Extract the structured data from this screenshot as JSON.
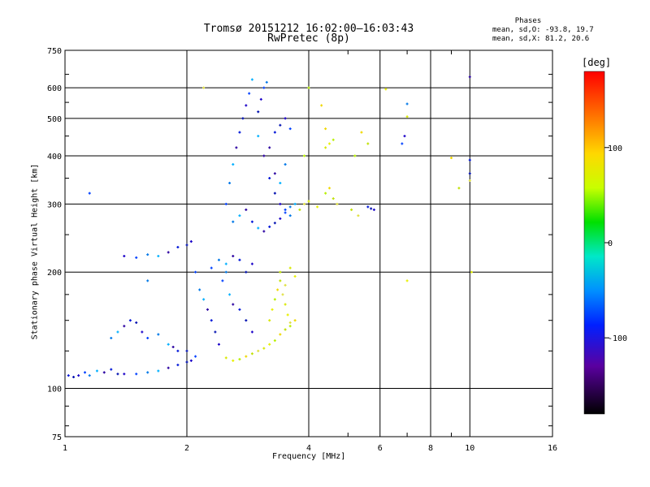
{
  "chart_data": {
    "type": "scatter",
    "title": "Tromsø 20151212 16:02:00–16:03:43",
    "subtitle": "RwPretec (8p)",
    "xlabel": "Frequency [MHz]",
    "ylabel": "Stationary phase Virtual Height [km]",
    "xscale": "log",
    "yscale": "log",
    "xlim": [
      1,
      16
    ],
    "ylim": [
      75,
      750
    ],
    "xticks": [
      1,
      2,
      4,
      6,
      8,
      10,
      16
    ],
    "yticks": [
      75,
      100,
      200,
      300,
      400,
      500,
      600,
      750
    ],
    "grid": true,
    "phases": {
      "title": "Phases",
      "o_line": "mean, sd,O: -93.8, 19.7",
      "x_line": "mean, sd,X:  81.2, 20.6"
    },
    "colorbar": {
      "unit": "[deg]",
      "ticks": [
        100,
        0,
        -100
      ],
      "range": [
        -180,
        180
      ]
    },
    "series": [
      {
        "values": [
          [
            1.02,
            108
          ],
          [
            1.05,
            107
          ],
          [
            1.08,
            108
          ],
          [
            1.12,
            110
          ],
          [
            1.15,
            108
          ],
          [
            1.2,
            111
          ],
          [
            1.25,
            110
          ],
          [
            1.3,
            112
          ],
          [
            1.35,
            109
          ],
          [
            1.4,
            109
          ],
          [
            1.5,
            109
          ],
          [
            1.6,
            110
          ],
          [
            1.7,
            111
          ],
          [
            1.8,
            113
          ],
          [
            1.9,
            115
          ],
          [
            2.0,
            117
          ],
          [
            2.05,
            118
          ],
          [
            2.1,
            121
          ],
          [
            1.3,
            135
          ],
          [
            1.35,
            140
          ],
          [
            1.4,
            145
          ],
          [
            1.45,
            150
          ],
          [
            1.5,
            148
          ],
          [
            1.55,
            140
          ],
          [
            1.6,
            135
          ],
          [
            1.7,
            138
          ],
          [
            1.8,
            130
          ],
          [
            1.85,
            128
          ],
          [
            1.9,
            125
          ],
          [
            2.0,
            125
          ],
          [
            1.4,
            220
          ],
          [
            1.5,
            218
          ],
          [
            1.6,
            222
          ],
          [
            1.7,
            220
          ],
          [
            1.8,
            225
          ],
          [
            1.9,
            232
          ],
          [
            2.0,
            235
          ],
          [
            2.05,
            240
          ],
          [
            2.1,
            200
          ],
          [
            2.15,
            180
          ],
          [
            2.2,
            170
          ],
          [
            2.25,
            160
          ],
          [
            2.3,
            150
          ],
          [
            2.35,
            140
          ],
          [
            2.4,
            130
          ],
          [
            2.45,
            190
          ],
          [
            2.5,
            200
          ],
          [
            2.55,
            175
          ],
          [
            2.6,
            165
          ],
          [
            2.7,
            160
          ],
          [
            2.8,
            150
          ],
          [
            2.9,
            140
          ],
          [
            2.3,
            205
          ],
          [
            2.4,
            215
          ],
          [
            2.5,
            210
          ],
          [
            2.6,
            220
          ],
          [
            2.7,
            215
          ],
          [
            2.8,
            200
          ],
          [
            2.9,
            210
          ],
          [
            2.5,
            300
          ],
          [
            2.55,
            340
          ],
          [
            2.6,
            380
          ],
          [
            2.65,
            420
          ],
          [
            2.7,
            460
          ],
          [
            2.75,
            500
          ],
          [
            2.8,
            540
          ],
          [
            2.85,
            580
          ],
          [
            2.6,
            270
          ],
          [
            2.7,
            280
          ],
          [
            2.8,
            290
          ],
          [
            2.9,
            270
          ],
          [
            3.0,
            520
          ],
          [
            3.05,
            560
          ],
          [
            3.1,
            600
          ],
          [
            3.15,
            620
          ],
          [
            3.0,
            450
          ],
          [
            3.1,
            400
          ],
          [
            3.2,
            350
          ],
          [
            3.3,
            320
          ],
          [
            3.4,
            300
          ],
          [
            3.5,
            290
          ],
          [
            3.6,
            280
          ],
          [
            3.0,
            260
          ],
          [
            3.1,
            255
          ],
          [
            3.2,
            262
          ],
          [
            3.3,
            268
          ],
          [
            3.4,
            275
          ],
          [
            3.5,
            285
          ],
          [
            3.6,
            295
          ],
          [
            3.7,
            300
          ],
          [
            3.2,
            420
          ],
          [
            3.3,
            460
          ],
          [
            3.4,
            480
          ],
          [
            3.5,
            500
          ],
          [
            3.6,
            470
          ],
          [
            3.5,
            380
          ],
          [
            3.4,
            340
          ],
          [
            3.3,
            360
          ],
          [
            5.6,
            295
          ],
          [
            5.7,
            292
          ],
          [
            5.8,
            290
          ],
          [
            1.15,
            320
          ],
          [
            1.6,
            190
          ],
          [
            2.9,
            630
          ],
          [
            10.0,
            640
          ],
          [
            10.0,
            390
          ],
          [
            10.0,
            360
          ],
          [
            6.9,
            450
          ],
          [
            6.8,
            430
          ],
          [
            7.0,
            545
          ]
        ],
        "name": ""
      },
      {
        "values": [
          [
            2.5,
            120
          ],
          [
            2.6,
            118
          ],
          [
            2.7,
            119
          ],
          [
            2.8,
            121
          ],
          [
            2.9,
            123
          ],
          [
            3.0,
            125
          ],
          [
            3.1,
            127
          ],
          [
            3.2,
            130
          ],
          [
            3.3,
            133
          ],
          [
            3.4,
            138
          ],
          [
            3.5,
            142
          ],
          [
            3.6,
            148
          ],
          [
            3.2,
            150
          ],
          [
            3.25,
            160
          ],
          [
            3.3,
            170
          ],
          [
            3.35,
            180
          ],
          [
            3.4,
            190
          ],
          [
            3.45,
            175
          ],
          [
            3.5,
            165
          ],
          [
            3.55,
            155
          ],
          [
            3.6,
            145
          ],
          [
            3.7,
            150
          ],
          [
            3.8,
            290
          ],
          [
            3.9,
            300
          ],
          [
            4.0,
            305
          ],
          [
            4.2,
            295
          ],
          [
            4.4,
            320
          ],
          [
            4.5,
            330
          ],
          [
            4.6,
            310
          ],
          [
            4.7,
            300
          ],
          [
            4.4,
            420
          ],
          [
            4.5,
            430
          ],
          [
            4.6,
            440
          ],
          [
            4.4,
            470
          ],
          [
            5.1,
            290
          ],
          [
            5.3,
            280
          ],
          [
            7.0,
            505
          ],
          [
            6.2,
            595
          ],
          [
            3.9,
            400
          ],
          [
            9.0,
            395
          ],
          [
            9.4,
            330
          ],
          [
            10.0,
            345
          ],
          [
            10.1,
            200
          ],
          [
            7.0,
            190
          ],
          [
            5.2,
            400
          ],
          [
            5.4,
            460
          ],
          [
            3.4,
            200
          ],
          [
            3.5,
            185
          ],
          [
            3.6,
            205
          ],
          [
            3.7,
            195
          ],
          [
            4.0,
            600
          ],
          [
            4.3,
            540
          ],
          [
            5.6,
            430
          ],
          [
            2.2,
            600
          ]
        ],
        "name": ""
      }
    ]
  }
}
